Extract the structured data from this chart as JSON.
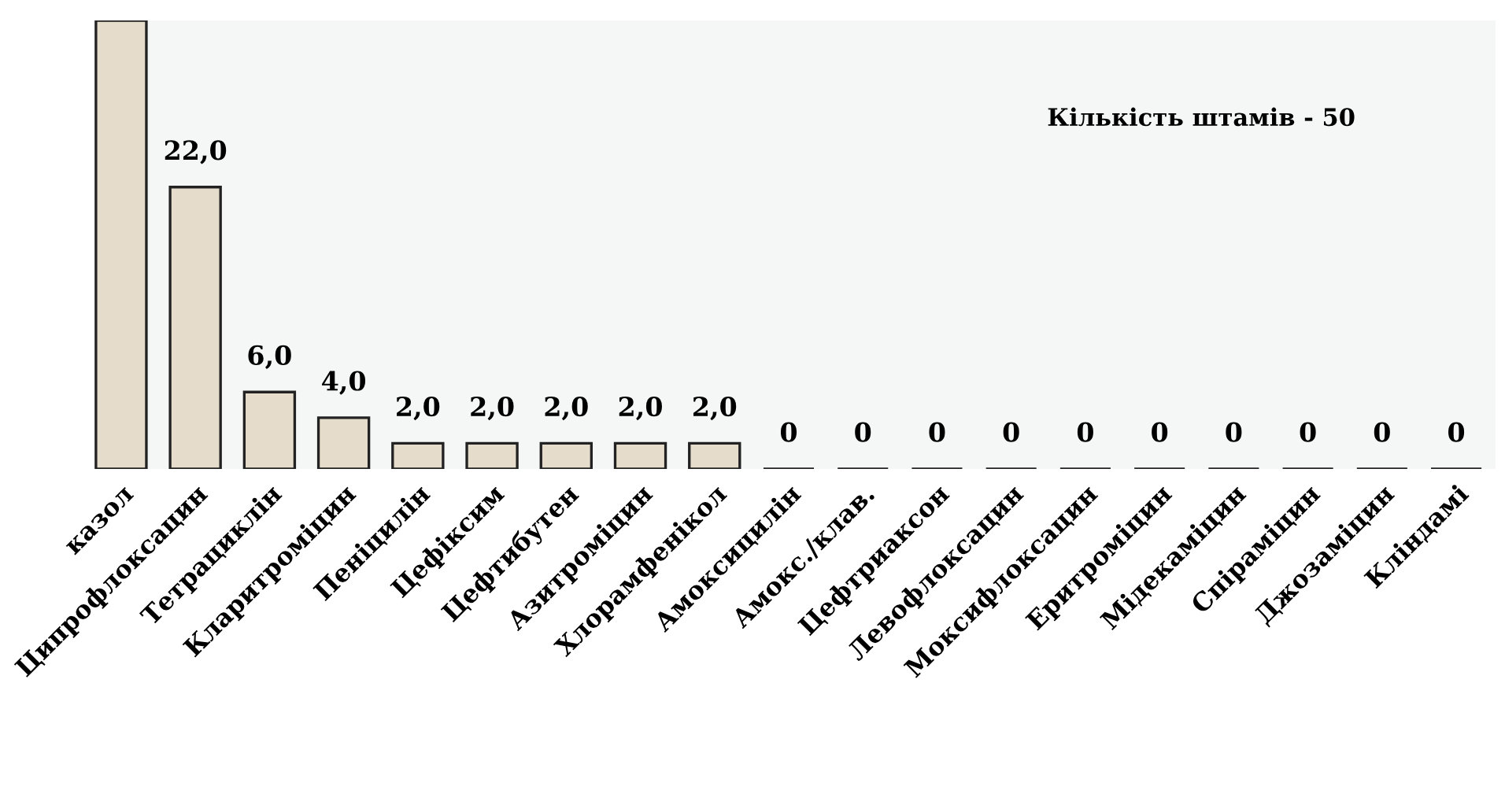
{
  "chart_data": {
    "type": "bar",
    "categories": [
      "казол",
      "Ципрофлоксацин",
      "Тетрациклін",
      "Кларитроміцин",
      "Пеніцилін",
      "Цефіксим",
      "Цефтибутен",
      "Азитроміцин",
      "Хлорамфенікол",
      "Амоксицилін",
      "Амокс./клав.",
      "Цефтриаксон",
      "Левофлоксацин",
      "Моксифлоксацин",
      "Еритроміцин",
      "Мідекаміцин",
      "Спіраміцин",
      "Джозаміцин",
      "Кліндамі"
    ],
    "values": [
      35,
      22,
      6,
      4,
      2,
      2,
      2,
      2,
      2,
      0,
      0,
      0,
      0,
      0,
      0,
      0,
      0,
      0,
      0
    ],
    "value_labels": [
      null,
      "22,0",
      "6,0",
      "4,0",
      "2,0",
      "2,0",
      "2,0",
      "2,0",
      "2,0",
      "0",
      "0",
      "0",
      "0",
      "0",
      "0",
      "0",
      "0",
      "0",
      "0"
    ],
    "color": "#e6dccb",
    "ylim": [
      0,
      35
    ],
    "tick_labels": "x",
    "grid": false,
    "legend": false,
    "annotations": [
      "Кількість штамів - 50"
    ]
  }
}
